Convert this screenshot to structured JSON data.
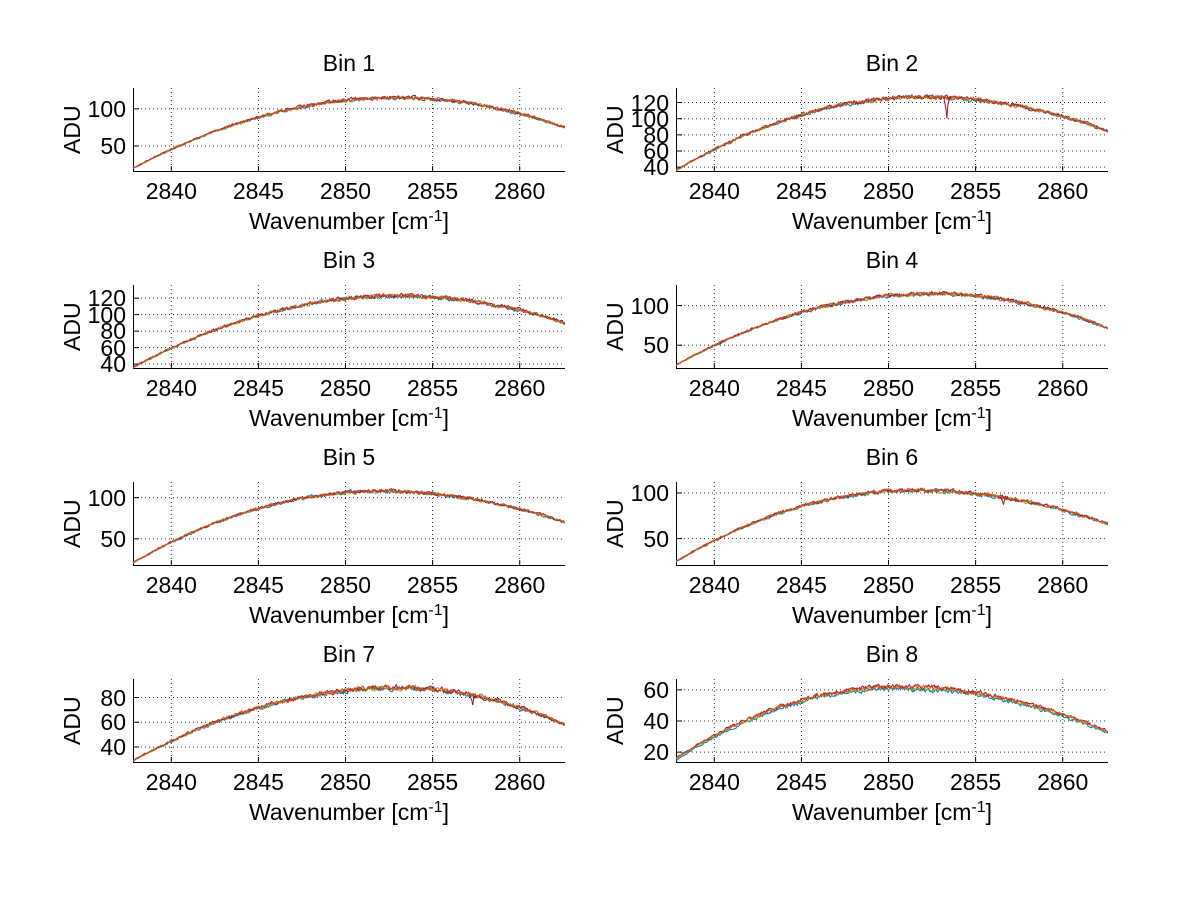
{
  "figure": {
    "background": "#ffffff",
    "grid_color": "#333333",
    "spine_color": "#000000",
    "line_colors": [
      "#0072BD",
      "#77AC30",
      "#A2142F",
      "#D95319"
    ],
    "notch_color": "#A2142F"
  },
  "labels": {
    "ylabel": "ADU",
    "xlabel_pre": "Wavenumber [cm",
    "xlabel_sup": "-1",
    "xlabel_post": "]"
  },
  "chart_data": [
    {
      "type": "line",
      "title": "Bin 1",
      "xlabel": "Wavenumber [cm⁻¹]",
      "ylabel": "ADU",
      "xlim": [
        2837.8,
        2862.6
      ],
      "x_ticks": [
        2840,
        2845,
        2850,
        2855,
        2860
      ],
      "ylim": [
        15,
        128
      ],
      "y_ticks": [
        50,
        100
      ],
      "grid": true,
      "curve": {
        "start": 20,
        "peak": 115,
        "peak_x": 2853,
        "end": 75
      },
      "noise": 2.2,
      "spread": 0.5,
      "notch": null
    },
    {
      "type": "line",
      "title": "Bin 2",
      "xlabel": "Wavenumber [cm⁻¹]",
      "ylabel": "ADU",
      "xlim": [
        2837.8,
        2862.6
      ],
      "x_ticks": [
        2840,
        2845,
        2850,
        2855,
        2860
      ],
      "ylim": [
        34,
        138
      ],
      "y_ticks": [
        40,
        60,
        80,
        100,
        120
      ],
      "grid": true,
      "curve": {
        "start": 36,
        "peak": 127,
        "peak_x": 2852,
        "end": 85
      },
      "noise": 2.4,
      "spread": 0.5,
      "notch": {
        "x": 2853.35,
        "depth": 26
      }
    },
    {
      "type": "line",
      "title": "Bin 3",
      "xlabel": "Wavenumber [cm⁻¹]",
      "ylabel": "ADU",
      "xlim": [
        2837.8,
        2862.6
      ],
      "x_ticks": [
        2840,
        2845,
        2850,
        2855,
        2860
      ],
      "ylim": [
        34,
        136
      ],
      "y_ticks": [
        40,
        60,
        80,
        100,
        120
      ],
      "grid": true,
      "curve": {
        "start": 36,
        "peak": 123,
        "peak_x": 2853,
        "end": 90
      },
      "noise": 2.2,
      "spread": 0.5,
      "notch": null
    },
    {
      "type": "line",
      "title": "Bin 4",
      "xlabel": "Wavenumber [cm⁻¹]",
      "ylabel": "ADU",
      "xlim": [
        2837.8,
        2862.6
      ],
      "x_ticks": [
        2840,
        2845,
        2850,
        2855,
        2860
      ],
      "ylim": [
        20,
        126
      ],
      "y_ticks": [
        50,
        100
      ],
      "grid": true,
      "curve": {
        "start": 25,
        "peak": 115,
        "peak_x": 2852.5,
        "end": 72
      },
      "noise": 2.2,
      "spread": 0.5,
      "notch": null
    },
    {
      "type": "line",
      "title": "Bin 5",
      "xlabel": "Wavenumber [cm⁻¹]",
      "ylabel": "ADU",
      "xlim": [
        2837.8,
        2862.6
      ],
      "x_ticks": [
        2840,
        2845,
        2850,
        2855,
        2860
      ],
      "ylim": [
        17,
        119
      ],
      "y_ticks": [
        50,
        100
      ],
      "grid": true,
      "curve": {
        "start": 21,
        "peak": 108,
        "peak_x": 2852,
        "end": 70
      },
      "noise": 2.0,
      "spread": 0.5,
      "notch": null
    },
    {
      "type": "line",
      "title": "Bin 6",
      "xlabel": "Wavenumber [cm⁻¹]",
      "ylabel": "ADU",
      "xlim": [
        2837.8,
        2862.6
      ],
      "x_ticks": [
        2840,
        2845,
        2850,
        2855,
        2860
      ],
      "ylim": [
        20,
        112
      ],
      "y_ticks": [
        50,
        100
      ],
      "grid": true,
      "curve": {
        "start": 25,
        "peak": 103,
        "peak_x": 2851.5,
        "end": 66
      },
      "noise": 2.0,
      "spread": 0.5,
      "notch": {
        "x": 2856.6,
        "depth": 8
      }
    },
    {
      "type": "line",
      "title": "Bin 7",
      "xlabel": "Wavenumber [cm⁻¹]",
      "ylabel": "ADU",
      "xlim": [
        2837.8,
        2862.6
      ],
      "x_ticks": [
        2840,
        2845,
        2850,
        2855,
        2860
      ],
      "ylim": [
        27,
        95
      ],
      "y_ticks": [
        40,
        60,
        80
      ],
      "grid": true,
      "curve": {
        "start": 29,
        "peak": 88,
        "peak_x": 2853,
        "end": 58
      },
      "noise": 1.8,
      "spread": 0.5,
      "notch": {
        "x": 2857.3,
        "depth": 8
      }
    },
    {
      "type": "line",
      "title": "Bin 8",
      "xlabel": "Wavenumber [cm⁻¹]",
      "ylabel": "ADU",
      "xlim": [
        2837.8,
        2862.6
      ],
      "x_ticks": [
        2840,
        2845,
        2850,
        2855,
        2860
      ],
      "ylim": [
        13,
        67
      ],
      "y_ticks": [
        20,
        40,
        60
      ],
      "grid": true,
      "curve": {
        "start": 16,
        "peak": 62,
        "peak_x": 2850.5,
        "end": 33
      },
      "noise": 1.3,
      "spread": 1.3,
      "notch": null
    }
  ]
}
